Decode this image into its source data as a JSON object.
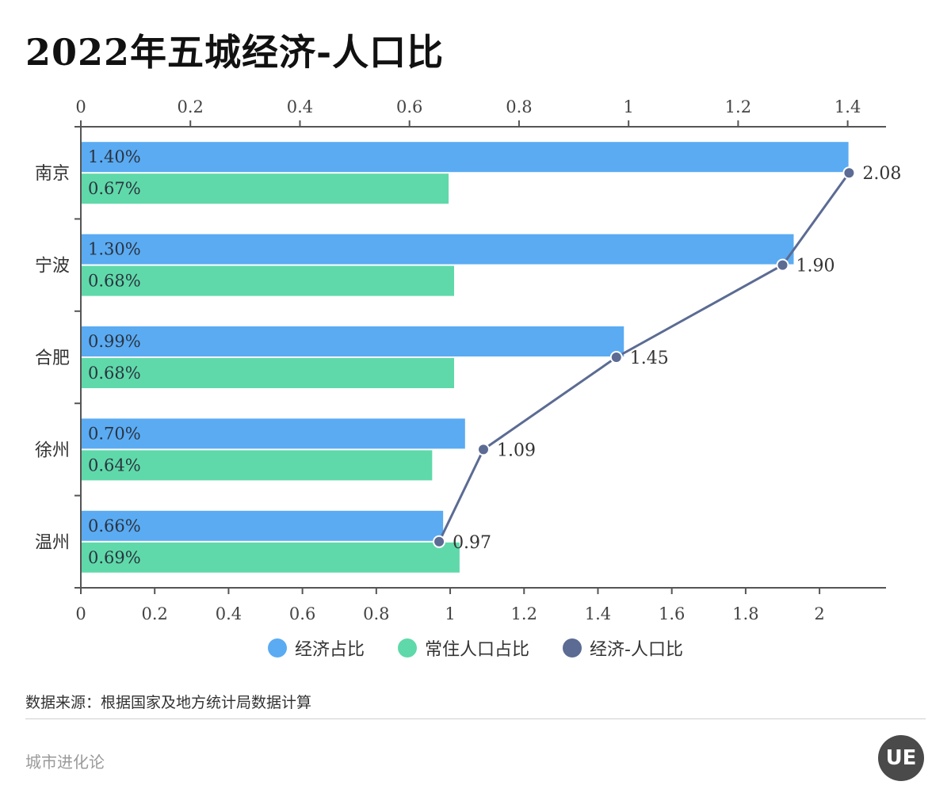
{
  "title": "2022年五城经济-人口比",
  "chart_data": {
    "type": "bar",
    "orientation": "horizontal",
    "categories": [
      "南京",
      "宁波",
      "合肥",
      "徐州",
      "温州"
    ],
    "series": [
      {
        "name": "经济占比",
        "type": "bar",
        "axis": "top",
        "values": [
          1.4,
          1.3,
          0.99,
          0.7,
          0.66
        ],
        "labels": [
          "1.40%",
          "1.30%",
          "0.99%",
          "0.70%",
          "0.66%"
        ],
        "color": "#5aabf2"
      },
      {
        "name": "常住人口占比",
        "type": "bar",
        "axis": "top",
        "values": [
          0.67,
          0.68,
          0.68,
          0.64,
          0.69
        ],
        "labels": [
          "0.67%",
          "0.68%",
          "0.68%",
          "0.64%",
          "0.69%"
        ],
        "color": "#5fd9a9"
      },
      {
        "name": "经济-人口比",
        "type": "line",
        "axis": "bottom",
        "values": [
          2.08,
          1.9,
          1.45,
          1.09,
          0.97
        ],
        "labels": [
          "2.08",
          "1.90",
          "1.45",
          "1.09",
          "0.97"
        ],
        "color": "#5b6b93"
      }
    ],
    "top_axis": {
      "range": [
        0,
        1.47
      ],
      "ticks": [
        0,
        0.2,
        0.4,
        0.6,
        0.8,
        1,
        1.2,
        1.4
      ]
    },
    "bottom_axis": {
      "range": [
        0,
        2.18
      ],
      "ticks": [
        0,
        0.2,
        0.4,
        0.6,
        0.8,
        1,
        1.2,
        1.4,
        1.6,
        1.8,
        2
      ]
    },
    "legend_position": "bottom-center"
  },
  "legend": [
    {
      "label": "经济占比",
      "color": "#5aabf2"
    },
    {
      "label": "常住人口占比",
      "color": "#5fd9a9"
    },
    {
      "label": "经济-人口比",
      "color": "#5b6b93"
    }
  ],
  "source": "数据来源：根据国家及地方统计局数据计算",
  "brand": "城市进化论",
  "logo_text": "UE"
}
